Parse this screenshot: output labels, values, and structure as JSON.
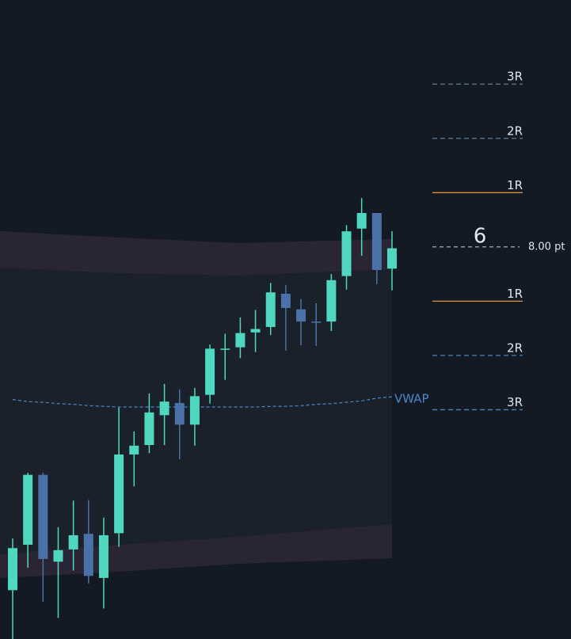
{
  "chart_data": {
    "type": "candlestick",
    "ylim": [
      -57.8,
      36.4
    ],
    "up_color": "#4fd8bf",
    "down_color": "#4a72a8",
    "open": [
      -50.6,
      -43.9,
      -33.6,
      -46.4,
      -44.6,
      -42.3,
      -48.8,
      -42.2,
      -30.6,
      -29.2,
      -24.8,
      -23.0,
      -26.2,
      -21.8,
      -15.1,
      -14.8,
      -12.6,
      -11.8,
      -6.9,
      -9.2,
      -11.0,
      -11.0,
      -4.3,
      2.7,
      5.0,
      -3.2
    ],
    "high": [
      -43.0,
      -33.3,
      -33.3,
      -41.3,
      -37.4,
      -37.3,
      -39.9,
      -23.7,
      -27.2,
      -21.6,
      -20.2,
      -21.0,
      -20.8,
      -14.4,
      -12.8,
      -10.4,
      -9.3,
      -5.3,
      -5.6,
      -7.7,
      -8.3,
      -4.0,
      3.2,
      7.2,
      5.0,
      2.3
    ],
    "low": [
      -57.8,
      -47.3,
      -52.3,
      -54.7,
      -47.7,
      -49.6,
      -53.3,
      -44.2,
      -35.3,
      -30.4,
      -29.2,
      -31.3,
      -29.3,
      -23.1,
      -19.6,
      -16.4,
      -15.5,
      -13.0,
      -15.3,
      -14.5,
      -14.6,
      -12.4,
      -6.3,
      -1.3,
      -5.5,
      -6.4
    ],
    "close": [
      -44.4,
      -33.6,
      -46.0,
      -44.7,
      -42.5,
      -48.5,
      -42.5,
      -30.6,
      -29.3,
      -24.4,
      -22.8,
      -26.2,
      -22.0,
      -15.0,
      -15.0,
      -12.7,
      -12.1,
      -6.7,
      -9.0,
      -11.0,
      -11.1,
      -4.9,
      2.3,
      5.0,
      -3.4,
      -0.2
    ],
    "vwap": {
      "name": "VWAP",
      "color": "#4a86c8",
      "values": [
        -22.5,
        -22.8,
        -22.9,
        -23.1,
        -23.2,
        -23.4,
        -23.5,
        -23.6,
        -23.6,
        -23.6,
        -23.6,
        -23.6,
        -23.6,
        -23.6,
        -23.6,
        -23.6,
        -23.6,
        -23.5,
        -23.5,
        -23.4,
        -23.2,
        -23.1,
        -22.9,
        -22.7,
        -22.3,
        -22.1
      ]
    },
    "levels": [
      {
        "label": "3R",
        "value": 24,
        "color": "#5f7a92",
        "dashed": true
      },
      {
        "label": "2R",
        "value": 16,
        "color": "#5f7a92",
        "dashed": true
      },
      {
        "label": "1R",
        "value": 8,
        "color": "#e08f3c",
        "dashed": false
      },
      {
        "label": "1R",
        "value": -8,
        "color": "#e08f3c",
        "dashed": false
      },
      {
        "label": "2R",
        "value": -16,
        "color": "#4f80b8",
        "dashed": true
      },
      {
        "label": "3R",
        "value": -24,
        "color": "#4f80b8",
        "dashed": true
      }
    ],
    "entry": {
      "value": 0,
      "label": "8.00 pt",
      "annotation": "6",
      "color": "#b8bec8"
    }
  }
}
